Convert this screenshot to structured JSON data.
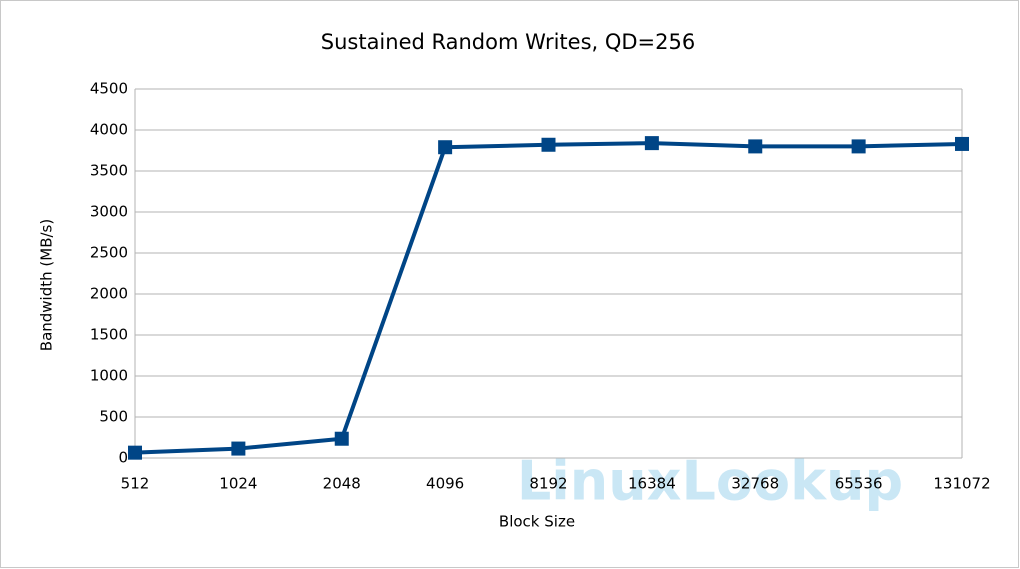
{
  "chart_data": {
    "type": "line",
    "title": "Sustained Random Writes, QD=256",
    "x_label": "Block Size",
    "y_label": "Bandwidth (MB/s)",
    "categories": [
      "512",
      "1024",
      "2048",
      "4096",
      "8192",
      "16384",
      "32768",
      "65536",
      "131072"
    ],
    "series": [
      {
        "name": "Bandwidth",
        "color": "#004586",
        "values": [
          65,
          115,
          235,
          3790,
          3820,
          3840,
          3800,
          3800,
          3830
        ]
      }
    ],
    "ylim": [
      0,
      4500
    ],
    "yticks": [
      0,
      500,
      1000,
      1500,
      2000,
      2500,
      3000,
      3500,
      4000,
      4500
    ],
    "grid": true,
    "watermark": "LinuxLookup"
  }
}
